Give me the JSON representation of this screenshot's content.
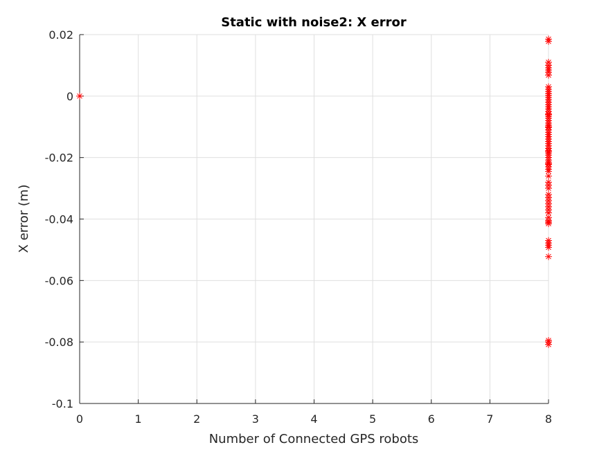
{
  "chart_data": {
    "type": "scatter",
    "title": "Static with noise2: X error",
    "xlabel": "Number of Connected GPS robots",
    "ylabel": "X error (m)",
    "xlim": [
      0,
      8
    ],
    "ylim": [
      -0.1,
      0.02
    ],
    "x_ticks": [
      0,
      1,
      2,
      3,
      4,
      5,
      6,
      7,
      8
    ],
    "x_tick_labels": [
      "0",
      "1",
      "2",
      "3",
      "4",
      "5",
      "6",
      "7",
      "8"
    ],
    "y_ticks": [
      0.02,
      0,
      -0.02,
      -0.04,
      -0.06,
      -0.08,
      -0.1
    ],
    "y_tick_labels": [
      "0.02",
      "0",
      "-0.02",
      "-0.04",
      "-0.06",
      "-0.08",
      "-0.1"
    ],
    "grid": true,
    "marker": "asterisk",
    "marker_color": "#ff0000",
    "series": [
      {
        "x": [
          0,
          8,
          8,
          8,
          8,
          8,
          8,
          8,
          8,
          8,
          8,
          8,
          8,
          8,
          8,
          8,
          8,
          8,
          8,
          8,
          8,
          8,
          8,
          8,
          8,
          8,
          8,
          8,
          8,
          8,
          8,
          8,
          8,
          8,
          8,
          8,
          8,
          8,
          8,
          8,
          8,
          8,
          8,
          8,
          8,
          8,
          8,
          8,
          8,
          8,
          8,
          8,
          8,
          8,
          8,
          8,
          8,
          8,
          8,
          8,
          8,
          8,
          8,
          8,
          8,
          8,
          8,
          8,
          8,
          8,
          8,
          8,
          8,
          8,
          8
        ],
        "y": [
          0,
          0.0185,
          0.0178,
          0.011,
          0.01,
          0.0092,
          0.0085,
          0.0078,
          0.0068,
          0.003,
          0.0022,
          0.0015,
          0.0008,
          0.0002,
          -0.0005,
          -0.0012,
          -0.002,
          -0.0028,
          -0.0035,
          -0.0042,
          -0.005,
          -0.0058,
          -0.0065,
          -0.0072,
          -0.008,
          -0.0088,
          -0.0095,
          -0.0102,
          -0.011,
          -0.0118,
          -0.0125,
          -0.0132,
          -0.014,
          -0.0148,
          -0.0155,
          -0.0162,
          -0.017,
          -0.0178,
          -0.0185,
          -0.0192,
          -0.02,
          -0.0208,
          -0.0215,
          -0.0222,
          -0.023,
          -0.0238,
          -0.0245,
          -0.026,
          -0.028,
          -0.029,
          -0.03,
          -0.032,
          -0.033,
          -0.034,
          -0.035,
          -0.036,
          -0.037,
          -0.038,
          -0.0395,
          -0.0405,
          -0.041,
          -0.0415,
          -0.047,
          -0.0478,
          -0.0485,
          -0.0492,
          -0.0522,
          -0.0795,
          -0.08,
          -0.0808,
          -0.006,
          -0.01,
          -0.014,
          -0.018,
          -0.022
        ]
      }
    ]
  }
}
